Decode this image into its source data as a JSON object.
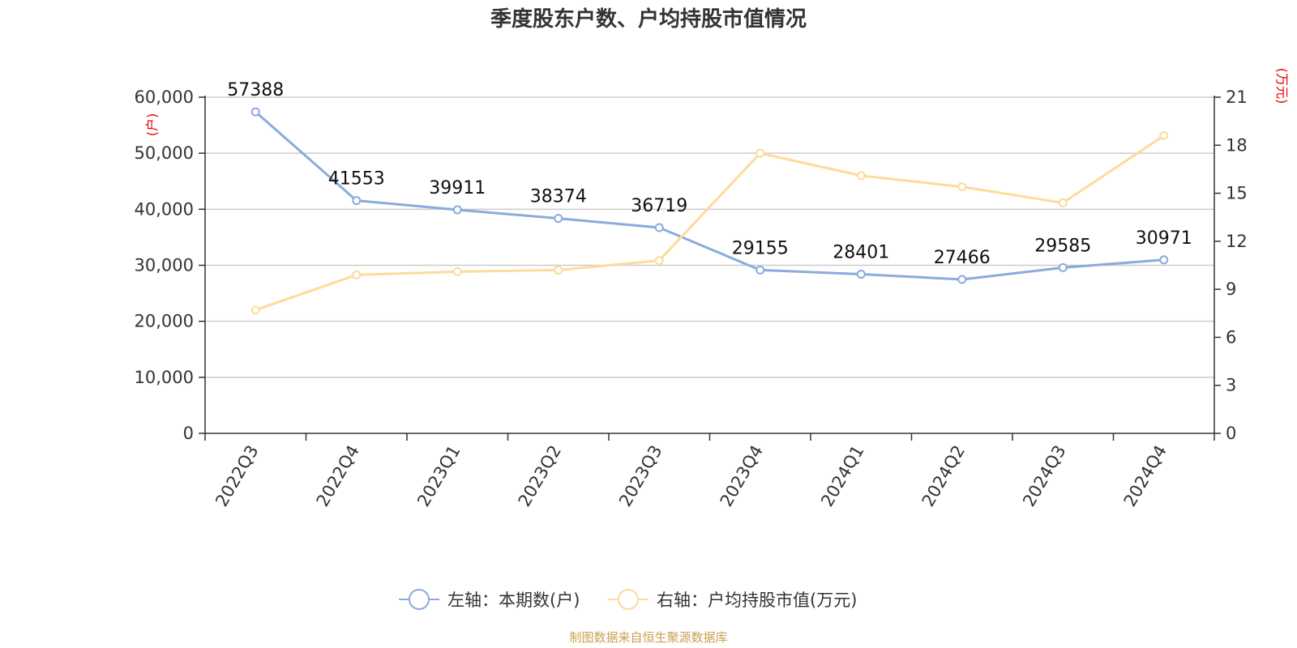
{
  "chart_data": {
    "type": "line",
    "title": "季度股东户数、户均持股市值情况",
    "categories": [
      "2022Q3",
      "2022Q4",
      "2023Q1",
      "2023Q2",
      "2023Q3",
      "2023Q4",
      "2024Q1",
      "2024Q2",
      "2024Q3",
      "2024Q4"
    ],
    "series": [
      {
        "name": "左轴：本期数(户)",
        "axis": "left",
        "color": "#8aabdc",
        "values": [
          57388,
          41553,
          39911,
          38374,
          36719,
          29155,
          28401,
          27466,
          29585,
          30971
        ],
        "show_labels": true
      },
      {
        "name": "右轴：户均持股市值(万元)",
        "axis": "right",
        "color": "#fddb9a",
        "values": [
          7.7,
          9.9,
          10.1,
          10.2,
          10.8,
          17.5,
          16.1,
          15.4,
          14.4,
          18.6
        ],
        "show_labels": false
      }
    ],
    "y_left": {
      "unit": "(户)",
      "range": [
        0,
        60000
      ],
      "ticks": [
        "0",
        "10,000",
        "20,000",
        "30,000",
        "40,000",
        "50,000",
        "60,000"
      ],
      "tick_values": [
        0,
        10000,
        20000,
        30000,
        40000,
        50000,
        60000
      ]
    },
    "y_right": {
      "unit": "(万元)",
      "range": [
        0,
        21
      ],
      "ticks": [
        "0",
        "3",
        "6",
        "9",
        "12",
        "15",
        "18",
        "21"
      ],
      "tick_values": [
        0,
        3,
        6,
        9,
        12,
        15,
        18,
        21
      ]
    },
    "grid": true,
    "legend_position": "bottom",
    "source": "制图数据来自恒生聚源数据库"
  }
}
